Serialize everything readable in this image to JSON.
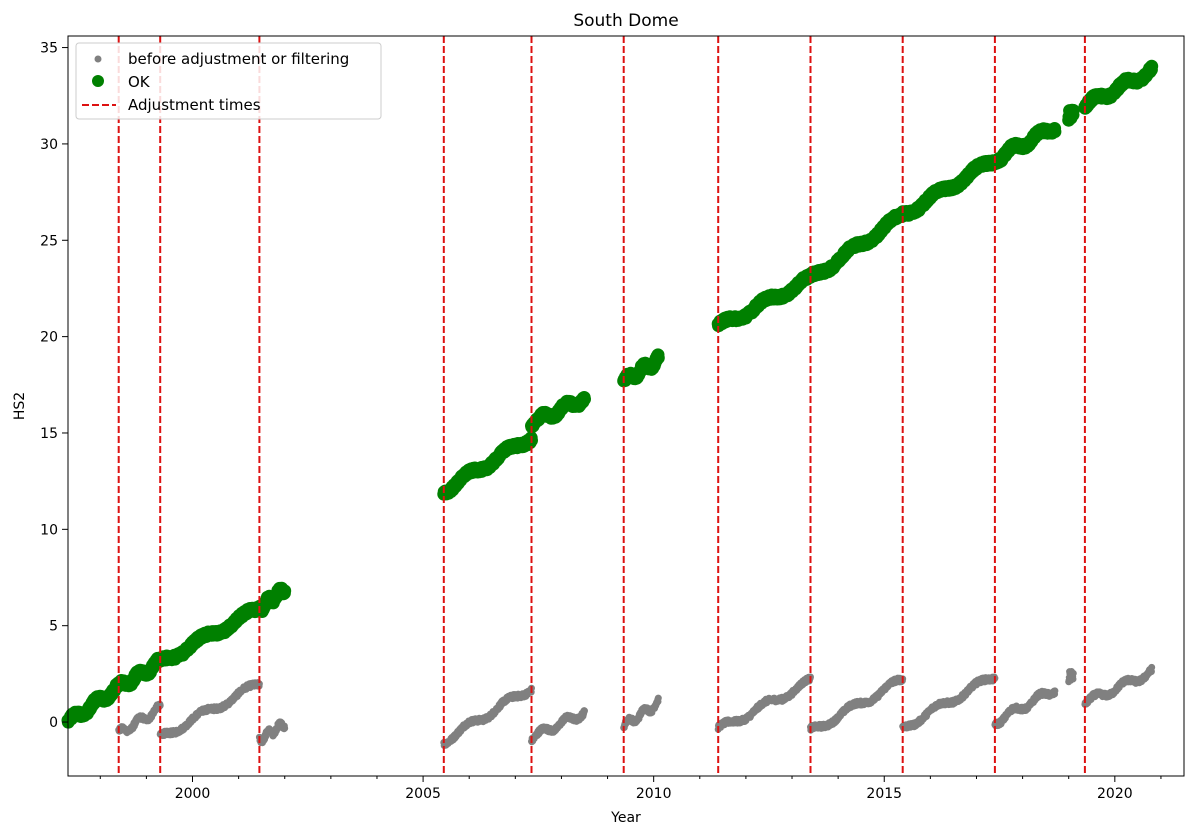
{
  "chart_data": {
    "type": "scatter",
    "title": "South Dome",
    "xlabel": "Year",
    "ylabel": "HS2",
    "xlim": [
      1997.3,
      2021.5
    ],
    "ylim": [
      -2.8,
      35.6
    ],
    "xticks": [
      2000,
      2005,
      2010,
      2015,
      2020
    ],
    "xtick_labels": [
      "2000",
      "2005",
      "2010",
      "2015",
      "2020"
    ],
    "x_minor_step": 1,
    "yticks": [
      0,
      5,
      10,
      15,
      20,
      25,
      30,
      35
    ],
    "ytick_labels": [
      "0",
      "5",
      "10",
      "15",
      "20",
      "25",
      "30",
      "35"
    ],
    "grid": false,
    "legend_position": "upper-left",
    "adjustment_times": [
      1998.4,
      1999.3,
      2001.45,
      2005.45,
      2007.35,
      2009.35,
      2011.4,
      2013.4,
      2015.4,
      2017.4,
      2019.35
    ],
    "series": [
      {
        "name": "before adjustment or filtering",
        "color": "#808080",
        "marker": "small-dot",
        "segments": [
          {
            "x": [
              1997.3,
              1998.4
            ],
            "y": [
              0.0,
              1.8
            ]
          },
          {
            "x": [
              1998.4,
              1999.3
            ],
            "y": [
              -0.6,
              0.7
            ]
          },
          {
            "x": [
              1999.3,
              2001.45
            ],
            "y": [
              -0.8,
              2.0
            ]
          },
          {
            "x": [
              2001.45,
              2002.0
            ],
            "y": [
              -0.9,
              -0.1
            ]
          },
          {
            "x": [
              2005.45,
              2007.35
            ],
            "y": [
              -1.0,
              1.8
            ]
          },
          {
            "x": [
              2007.35,
              2008.5
            ],
            "y": [
              -0.8,
              0.5
            ]
          },
          {
            "x": [
              2009.35,
              2010.1
            ],
            "y": [
              -0.2,
              1.0
            ]
          },
          {
            "x": [
              2011.4,
              2013.4
            ],
            "y": [
              -0.4,
              2.1
            ]
          },
          {
            "x": [
              2013.4,
              2015.4
            ],
            "y": [
              -0.5,
              2.2
            ]
          },
          {
            "x": [
              2015.4,
              2017.4
            ],
            "y": [
              -0.3,
              2.4
            ]
          },
          {
            "x": [
              2017.4,
              2018.7
            ],
            "y": [
              0.0,
              1.7
            ]
          },
          {
            "x": [
              2019.0,
              2019.1
            ],
            "y": [
              2.3,
              2.5
            ]
          },
          {
            "x": [
              2019.35,
              2020.8
            ],
            "y": [
              1.0,
              2.6
            ]
          }
        ]
      },
      {
        "name": "OK",
        "color": "#008000",
        "marker": "large-dot",
        "segments": [
          {
            "x": [
              1997.3,
              1998.4
            ],
            "y": [
              0.0,
              1.8
            ]
          },
          {
            "x": [
              1998.4,
              1999.3
            ],
            "y": [
              1.8,
              3.1
            ]
          },
          {
            "x": [
              1999.3,
              2001.45
            ],
            "y": [
              3.1,
              5.9
            ]
          },
          {
            "x": [
              2001.45,
              2002.0
            ],
            "y": [
              5.9,
              6.9
            ]
          },
          {
            "x": [
              2005.45,
              2007.35
            ],
            "y": [
              12.0,
              14.8
            ]
          },
          {
            "x": [
              2007.35,
              2008.5
            ],
            "y": [
              15.5,
              16.8
            ]
          },
          {
            "x": [
              2009.35,
              2010.1
            ],
            "y": [
              17.7,
              18.8
            ]
          },
          {
            "x": [
              2011.4,
              2013.4
            ],
            "y": [
              20.5,
              23.0
            ]
          },
          {
            "x": [
              2013.4,
              2015.4
            ],
            "y": [
              23.0,
              26.3
            ]
          },
          {
            "x": [
              2015.4,
              2017.4
            ],
            "y": [
              26.3,
              29.2
            ]
          },
          {
            "x": [
              2017.4,
              2018.7
            ],
            "y": [
              29.2,
              30.9
            ]
          },
          {
            "x": [
              2019.0,
              2019.1
            ],
            "y": [
              31.4,
              31.7
            ]
          },
          {
            "x": [
              2019.35,
              2020.8
            ],
            "y": [
              32.0,
              33.8
            ]
          }
        ]
      }
    ],
    "adjustment_series": {
      "name": "Adjustment times",
      "color": "#dd1111",
      "style": "dashed"
    }
  }
}
